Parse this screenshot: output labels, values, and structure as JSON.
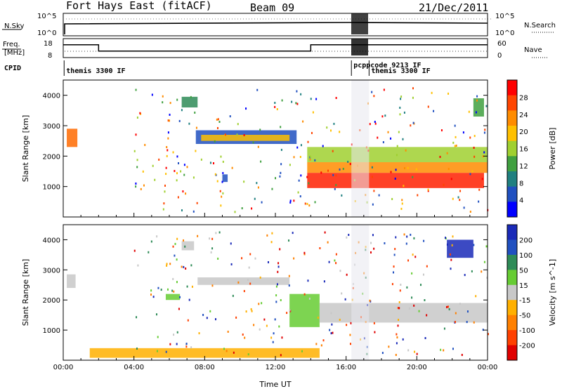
{
  "header": {
    "radar": "Fort Hays East (fitACF)",
    "beam": "Beam 09",
    "date": "21/Dec/2011"
  },
  "status_panels": {
    "nsky_label": "N.Sky",
    "nsky_ticks": [
      "10^5",
      "10^0"
    ],
    "nsearch_label": "N.Search",
    "nsearch_ticks": [
      "10^5",
      "10^0"
    ],
    "freq_label_1": "Freq.",
    "freq_label_2": "[MHz]",
    "freq_ticks": [
      "18",
      "8"
    ],
    "nave_label": "Nave",
    "nave_ticks": [
      "60",
      "0"
    ],
    "cpid_label": "CPID",
    "cpid_entries": [
      {
        "text": "themis 3300 IF",
        "start_hour": 0.05
      },
      {
        "text": "pcppcode 9213 IF",
        "start_hour": 16.3
      },
      {
        "text": "themis 3300 IF",
        "start_hour": 17.3
      }
    ],
    "freq_segments": [
      {
        "x0": 0,
        "x1": 2,
        "mhz": 16.5
      },
      {
        "x0": 2,
        "x1": 14,
        "mhz": 11.5
      },
      {
        "x0": 14,
        "x1": 24,
        "mhz": 16.5
      }
    ]
  },
  "chart_data": [
    {
      "type": "heatmap",
      "name": "power",
      "ylabel": "Slant Range [km]",
      "xlabel": "",
      "x_ticks": [
        "00:00",
        "04:00",
        "08:00",
        "12:00",
        "16:00",
        "20:00",
        "00:00"
      ],
      "xlim": [
        0,
        24
      ],
      "y_ticks": [
        "1000",
        "2000",
        "3000",
        "4000"
      ],
      "ylim": [
        0,
        4500
      ],
      "colorbar": {
        "label": "Power [dB]",
        "ticks": [
          "28",
          "24",
          "20",
          "16",
          "12",
          "8",
          "4"
        ],
        "colors": [
          "#ff0000",
          "#ff4500",
          "#ff8c00",
          "#ffc000",
          "#a0d030",
          "#40a040",
          "#208080",
          "#2050c0",
          "#0000ff"
        ]
      },
      "regions": [
        {
          "x0": 0.2,
          "x1": 0.8,
          "y0": 2300,
          "y1": 2900,
          "color": "#ff6a00"
        },
        {
          "x0": 6.7,
          "x1": 7.6,
          "y0": 3600,
          "y1": 3950,
          "color": "#2e8b57"
        },
        {
          "x0": 7.5,
          "x1": 13.2,
          "y0": 2400,
          "y1": 2850,
          "color": "#2050c0"
        },
        {
          "x0": 7.8,
          "x1": 12.8,
          "y0": 2500,
          "y1": 2700,
          "color": "#ffc000"
        },
        {
          "x0": 13.8,
          "x1": 24,
          "y0": 1800,
          "y1": 2300,
          "color": "#a0d030"
        },
        {
          "x0": 13.8,
          "x1": 24,
          "y0": 1450,
          "y1": 1800,
          "color": "#ff8c00"
        },
        {
          "x0": 13.8,
          "x1": 23.8,
          "y0": 950,
          "y1": 1450,
          "color": "#ff2000"
        },
        {
          "x0": 9.0,
          "x1": 9.3,
          "y0": 1150,
          "y1": 1400,
          "color": "#2050c0"
        },
        {
          "x0": 23.2,
          "x1": 23.8,
          "y0": 3300,
          "y1": 3900,
          "color": "#40a040"
        }
      ]
    },
    {
      "type": "heatmap",
      "name": "velocity",
      "ylabel": "Slant Range [km]",
      "xlabel": "Time UT",
      "x_ticks": [
        "00:00",
        "04:00",
        "08:00",
        "12:00",
        "16:00",
        "20:00",
        "00:00"
      ],
      "xlim": [
        0,
        24
      ],
      "y_ticks": [
        "1000",
        "2000",
        "3000",
        "4000"
      ],
      "ylim": [
        0,
        4500
      ],
      "colorbar": {
        "label": "Velocity [m s^-1]",
        "ticks": [
          "200",
          "100",
          "50",
          "15",
          "-15",
          "-50",
          "-100",
          "-200"
        ],
        "colors": [
          "#1a2ab8",
          "#2050c0",
          "#2e8b57",
          "#66cc33",
          "#c8c8c8",
          "#ffb000",
          "#ff8000",
          "#ff4000",
          "#e00000"
        ]
      },
      "regions": [
        {
          "x0": 0.2,
          "x1": 0.7,
          "y0": 2400,
          "y1": 2850,
          "color": "#c8c8c8"
        },
        {
          "x0": 5.8,
          "x1": 6.6,
          "y0": 2000,
          "y1": 2200,
          "color": "#66cc33"
        },
        {
          "x0": 6.7,
          "x1": 7.4,
          "y0": 3650,
          "y1": 3950,
          "color": "#c8c8c8"
        },
        {
          "x0": 7.6,
          "x1": 12.8,
          "y0": 2500,
          "y1": 2750,
          "color": "#c8c8c8"
        },
        {
          "x0": 12.8,
          "x1": 14.5,
          "y0": 1100,
          "y1": 2200,
          "color": "#66cc33"
        },
        {
          "x0": 14.5,
          "x1": 24,
          "y0": 1250,
          "y1": 1900,
          "color": "#c8c8c8"
        },
        {
          "x0": 21.7,
          "x1": 23.2,
          "y0": 3400,
          "y1": 4000,
          "color": "#1a2ab8"
        },
        {
          "x0": 1.5,
          "x1": 14.5,
          "y0": 80,
          "y1": 400,
          "color": "#ffb000"
        }
      ]
    }
  ]
}
